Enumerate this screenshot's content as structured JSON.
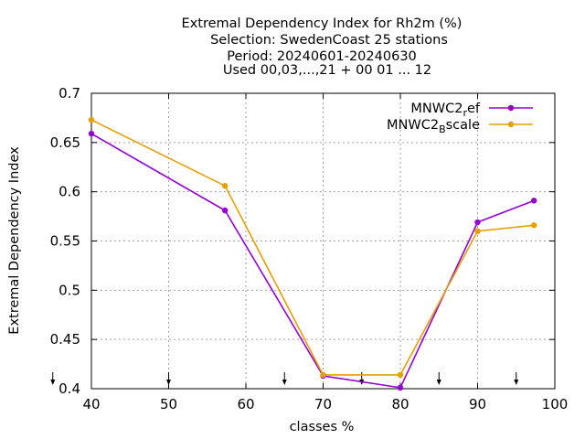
{
  "chart_data": {
    "type": "line",
    "title_lines": [
      "Extremal Dependency Index  for Rh2m (%)",
      "Selection: SwedenCoast     25 stations",
      "Period: 20240601-20240630",
      "Used 00,03,...,21 + 00 01 ... 12"
    ],
    "xlabel": "classes %",
    "ylabel": "Extremal Dependency Index",
    "xlim": [
      40,
      100
    ],
    "ylim": [
      0.4,
      0.7
    ],
    "xticks": [
      40,
      50,
      60,
      70,
      80,
      90,
      100
    ],
    "xtick_labels": [
      "40",
      "50",
      "60",
      "70",
      "80",
      "90",
      "100"
    ],
    "yticks": [
      0.4,
      0.45,
      0.5,
      0.55,
      0.6,
      0.65,
      0.7
    ],
    "ytick_labels": [
      "0.4",
      "0.45",
      "0.5",
      "0.55",
      "0.6",
      "0.65",
      "0.7"
    ],
    "grid": true,
    "legend_position": "top-right",
    "class_arrows": [
      35,
      50,
      65,
      75,
      85,
      95
    ],
    "series": [
      {
        "name_main": "MNWC2",
        "name_sub": "r",
        "name_rest": "ef",
        "color": "#9400d3",
        "x": [
          40,
          57.3,
          70,
          80,
          90,
          97.3
        ],
        "y": [
          0.659,
          0.581,
          0.413,
          0.401,
          0.569,
          0.591
        ]
      },
      {
        "name_main": "MNWC2",
        "name_sub": "B",
        "name_rest": "scale",
        "color": "#e69f00",
        "x": [
          40,
          57.3,
          70,
          80,
          90,
          97.3
        ],
        "y": [
          0.673,
          0.606,
          0.414,
          0.414,
          0.56,
          0.566
        ]
      }
    ]
  }
}
